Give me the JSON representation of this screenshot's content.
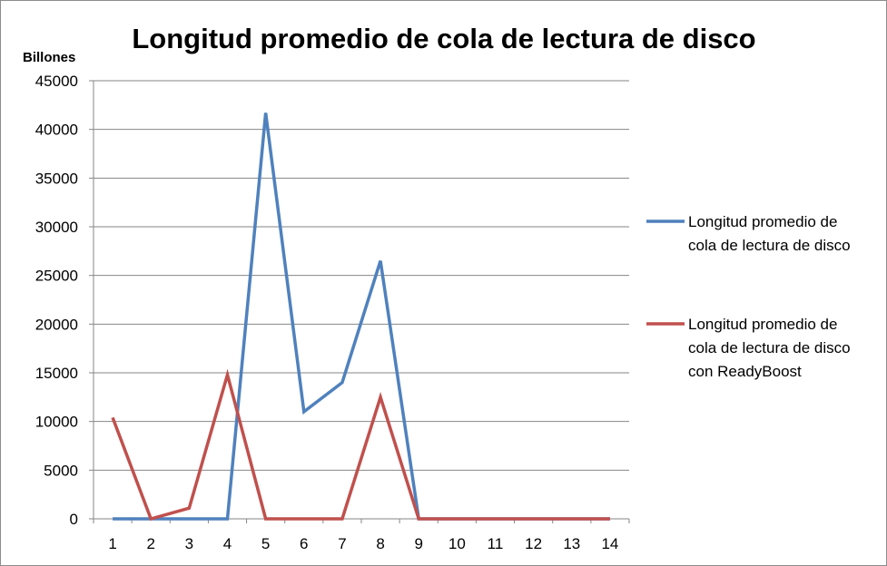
{
  "chart_data": {
    "type": "line",
    "title": "Longitud promedio de cola de lectura de disco",
    "xlabel": "",
    "ylabel": "Billones",
    "x": [
      1,
      2,
      3,
      4,
      5,
      6,
      7,
      8,
      9,
      10,
      11,
      12,
      13,
      14
    ],
    "xtick_labels": [
      "1",
      "2",
      "3",
      "4",
      "5",
      "6",
      "7",
      "8",
      "9",
      "10",
      "11",
      "12",
      "13",
      "14"
    ],
    "ylim": [
      0,
      45000
    ],
    "ytick_labels": [
      "0",
      "5000",
      "10000",
      "15000",
      "20000",
      "25000",
      "30000",
      "35000",
      "40000",
      "45000"
    ],
    "grid": true,
    "legend_position": "right",
    "series": [
      {
        "name": "Longitud promedio de cola de lectura de disco",
        "legend_lines": [
          "Longitud promedio de",
          "cola de lectura de disco"
        ],
        "color": "#4F81BD",
        "values": [
          0,
          0,
          0,
          0,
          41700,
          11000,
          14000,
          26500,
          0,
          0,
          0,
          0,
          0,
          0
        ]
      },
      {
        "name": "Longitud promedio de cola de lectura de disco con ReadyBoost",
        "legend_lines": [
          "Longitud promedio de",
          "cola de lectura de disco",
          "con ReadyBoost"
        ],
        "color": "#C0504D",
        "values": [
          10400,
          0,
          1100,
          14800,
          0,
          0,
          0,
          12500,
          0,
          0,
          0,
          0,
          0,
          0
        ]
      }
    ]
  }
}
